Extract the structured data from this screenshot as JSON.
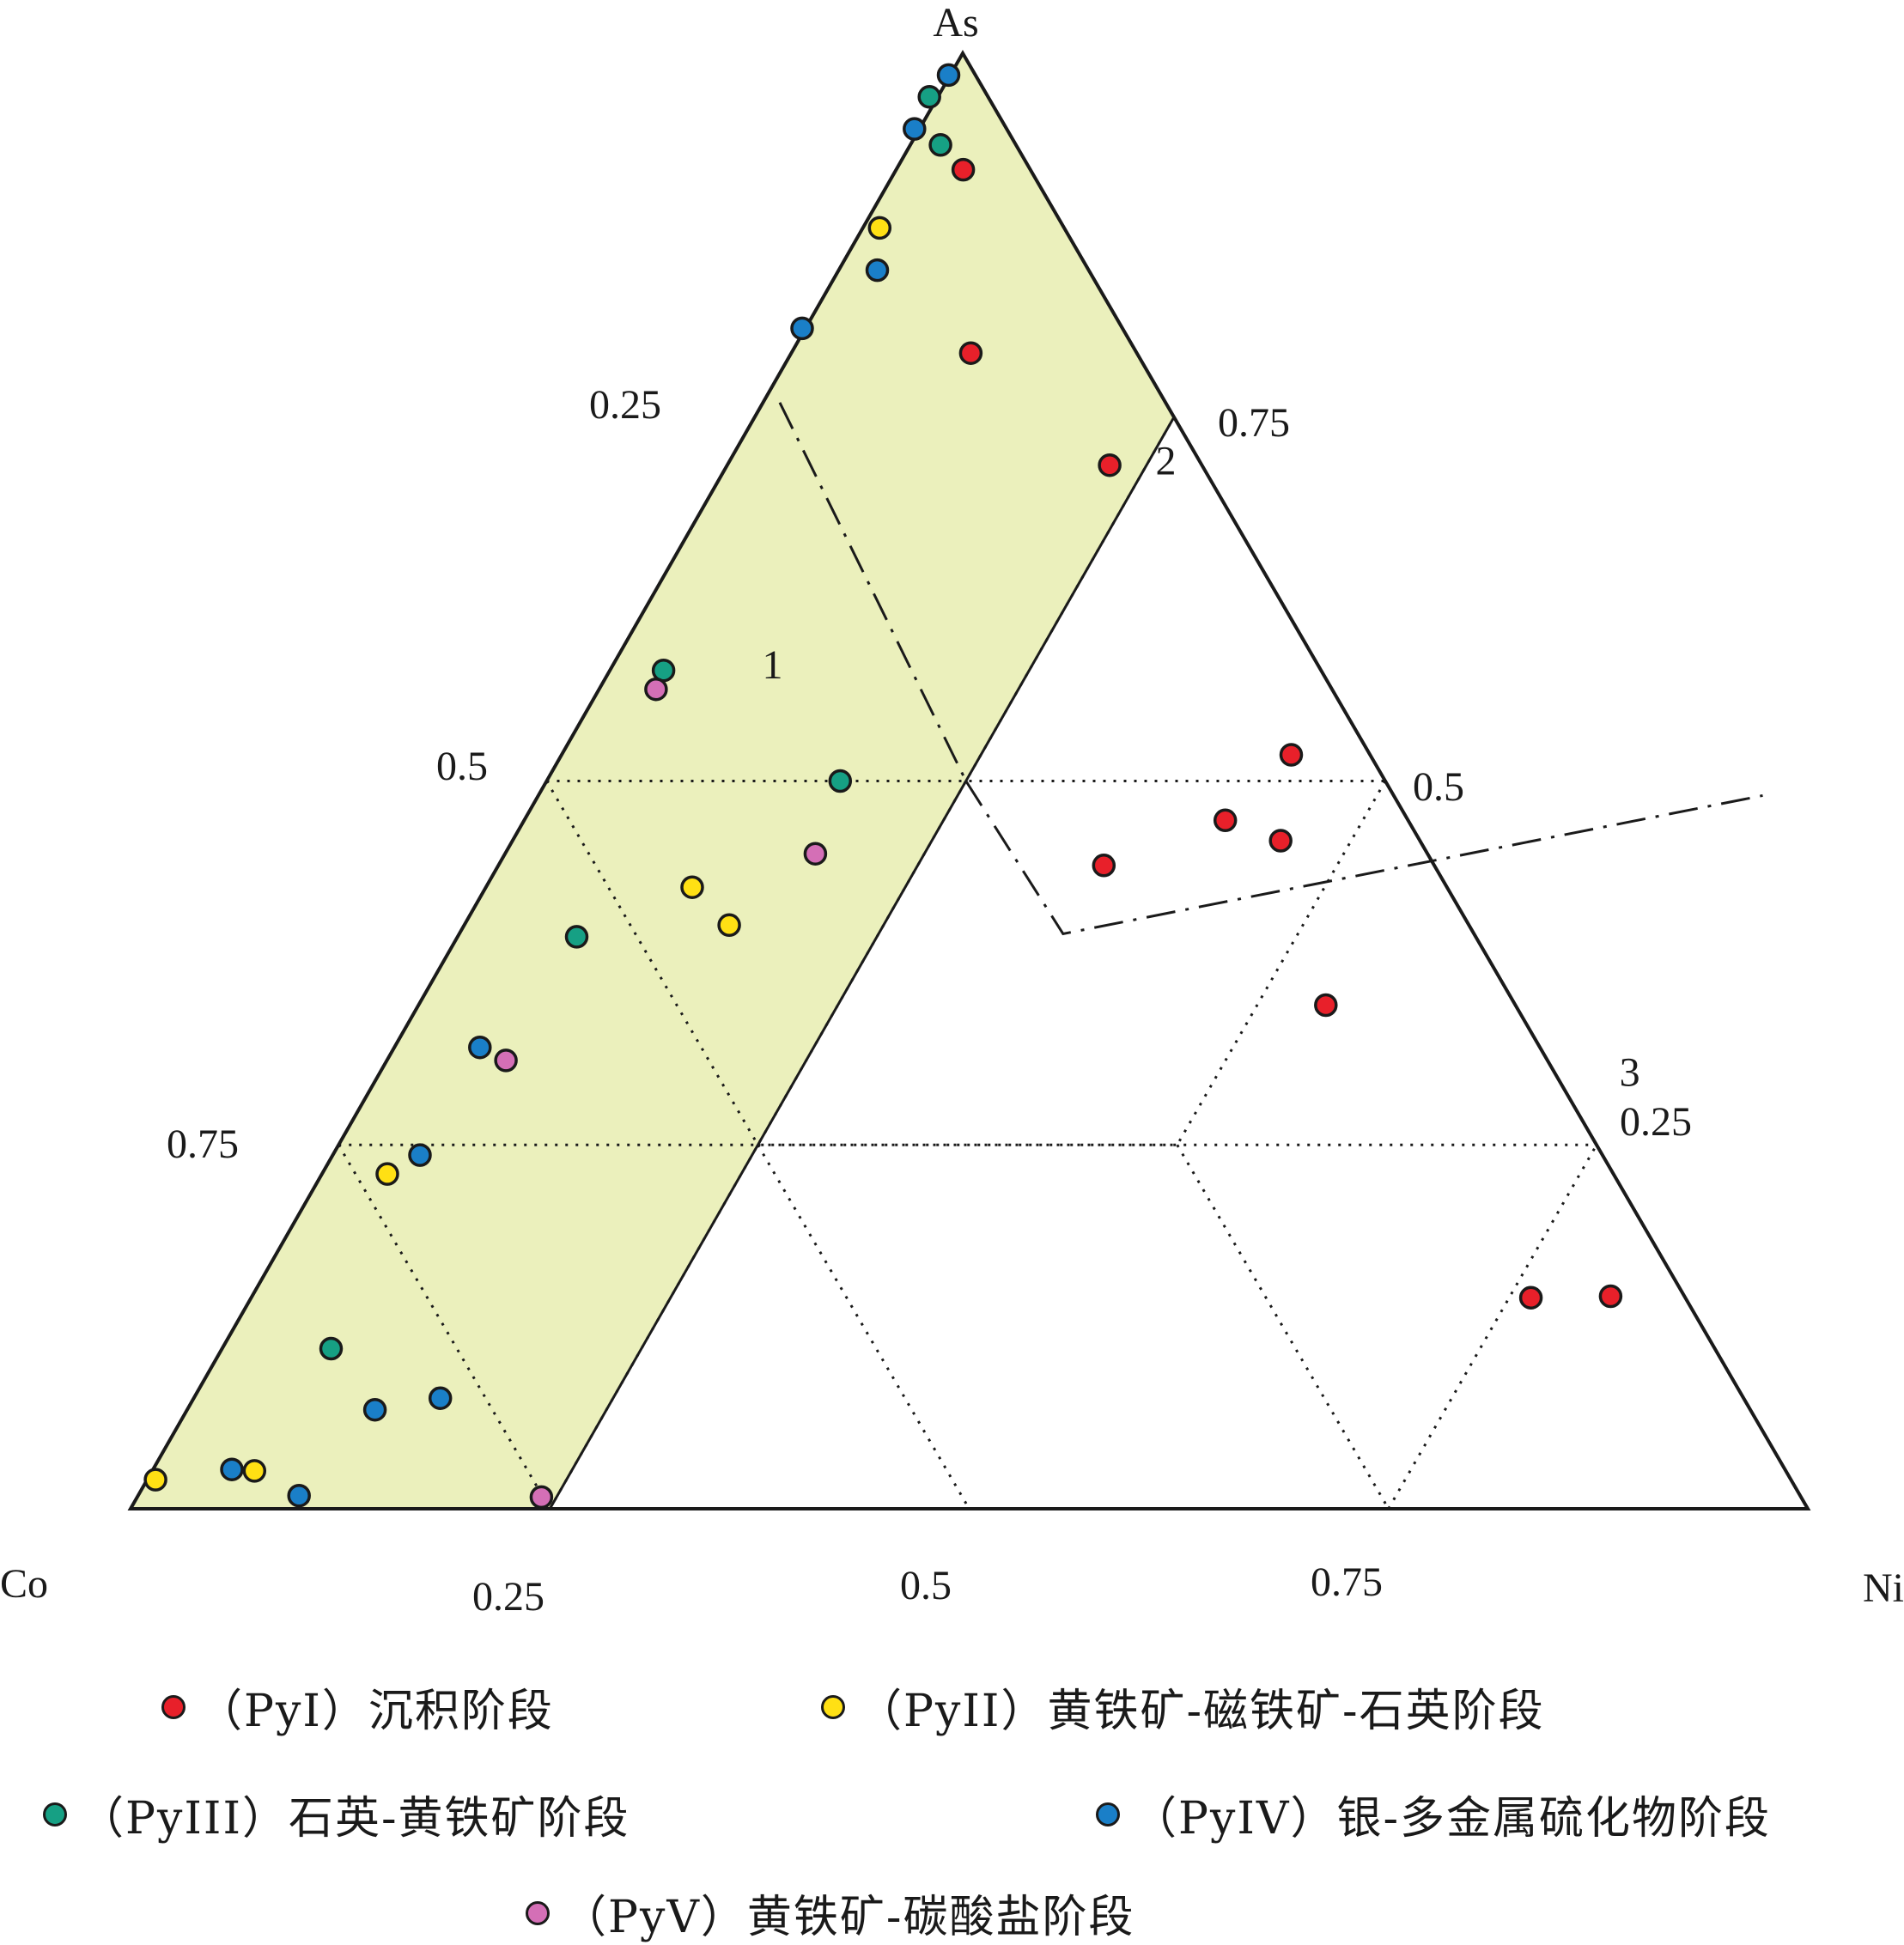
{
  "chart_data": {
    "type": "scatter",
    "subtype": "ternary",
    "vertex_labels": {
      "top": "As",
      "left": "Co",
      "right": "Ni"
    },
    "tick_labels": {
      "left_edge": [
        "0.25",
        "0.5",
        "0.75"
      ],
      "right_edge": [
        "0.75",
        "0.5",
        "0.25"
      ],
      "bottom_edge": [
        "0.25",
        "0.5",
        "0.75"
      ]
    },
    "regions": [
      {
        "label": "1",
        "b": 0.095,
        "c": 0.58
      },
      {
        "label": "2",
        "b": 0.26,
        "c": 0.72
      },
      {
        "label": "3",
        "b": 0.745,
        "c": 0.3
      }
    ],
    "shaded_band": {
      "b_min": 0.0,
      "b_max": 0.25,
      "color": "#ebf0bc"
    },
    "colors": {
      "PyI": "#e8202a",
      "PyII": "#ffe014",
      "PyIII": "#16a084",
      "PyIV": "#1a7fc8",
      "PyV": "#d46fb6"
    },
    "legend": [
      {
        "key": "PyI",
        "label": "（PyI）沉积阶段"
      },
      {
        "key": "PyII",
        "label": "（PyII）黄铁矿-磁铁矿-石英阶段"
      },
      {
        "key": "PyIII",
        "label": "（PyIII）石英-黄铁矿阶段"
      },
      {
        "key": "PyIV",
        "label": "（PyIV）银-多金属硫化物阶段"
      },
      {
        "key": "PyV",
        "label": "（PyV）黄铁矿-碳酸盐阶段"
      }
    ],
    "series": [
      {
        "name": "（PyI）沉积阶段",
        "key": "PyI",
        "points": [
          {
            "b": 0.04,
            "c": 0.92
          },
          {
            "b": 0.107,
            "c": 0.794
          },
          {
            "b": 0.228,
            "c": 0.717
          },
          {
            "b": 0.435,
            "c": 0.518
          },
          {
            "b": 0.418,
            "c": 0.473
          },
          {
            "b": 0.458,
            "c": 0.459
          },
          {
            "b": 0.361,
            "c": 0.442
          },
          {
            "b": 0.541,
            "c": 0.346
          },
          {
            "b": 0.763,
            "c": 0.145
          },
          {
            "b": 0.81,
            "c": 0.146
          }
        ]
      },
      {
        "name": "（PyII）黄铁矿-磁铁矿-石英阶段",
        "key": "PyII",
        "points": [
          {
            "b": 0.01,
            "c": 0.88
          },
          {
            "b": 0.123,
            "c": 0.427
          },
          {
            "b": 0.158,
            "c": 0.401
          },
          {
            "b": 0.039,
            "c": 0.23
          },
          {
            "b": 0.005,
            "c": 0.02
          },
          {
            "b": 0.061,
            "c": 0.026
          }
        ]
      },
      {
        "name": "（PyIII）石英-黄铁矿阶段",
        "key": "PyIII",
        "points": [
          {
            "b": 0.018,
            "c": 0.937
          },
          {
            "b": -0.005,
            "c": 0.97
          },
          {
            "b": 0.032,
            "c": 0.576
          },
          {
            "b": 0.175,
            "c": 0.5
          },
          {
            "b": 0.071,
            "c": 0.393
          },
          {
            "b": 0.065,
            "c": 0.11
          }
        ]
      },
      {
        "name": "（PyIV）银-多金属硫化物阶段",
        "key": "PyIV",
        "points": [
          {
            "b": -0.001,
            "c": 0.985
          },
          {
            "b": -0.003,
            "c": 0.948
          },
          {
            "b": 0.023,
            "c": 0.851
          },
          {
            "b": -0.002,
            "c": 0.811
          },
          {
            "b": 0.051,
            "c": 0.317
          },
          {
            "b": 0.052,
            "c": 0.243
          },
          {
            "b": 0.147,
            "c": 0.076
          },
          {
            "b": 0.112,
            "c": 0.068
          },
          {
            "b": 0.047,
            "c": 0.027
          },
          {
            "b": 0.096,
            "c": 0.009
          }
        ]
      },
      {
        "name": "（PyV）黄铁矿-碳酸盐阶段",
        "key": "PyV",
        "points": [
          {
            "b": 0.034,
            "c": 0.563
          },
          {
            "b": 0.185,
            "c": 0.45
          },
          {
            "b": 0.071,
            "c": 0.308
          },
          {
            "b": 0.241,
            "c": 0.008
          }
        ]
      }
    ]
  }
}
